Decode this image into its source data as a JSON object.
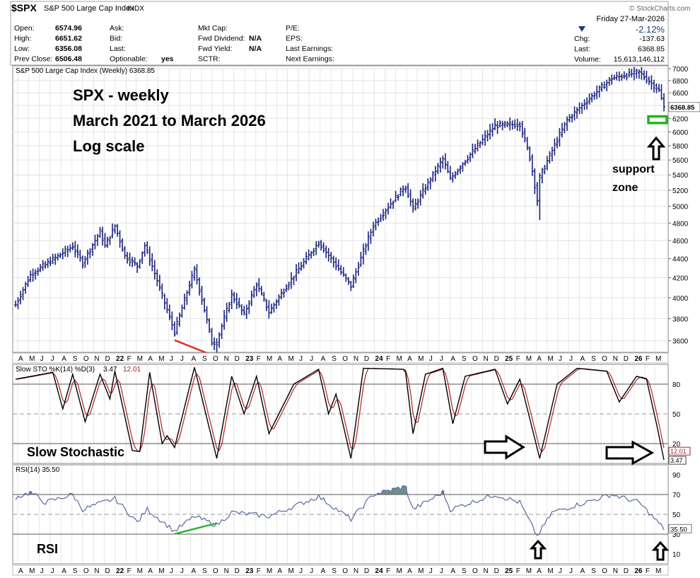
{
  "header": {
    "symbol": "$SPX",
    "name": "S&P 500 Large Cap Index",
    "exchange": "INDX",
    "brand": "© StockCharts.com",
    "date": "Friday  27-Mar-2026",
    "quote_col1": [
      {
        "label": "Open:",
        "value": "6574.96"
      },
      {
        "label": "High:",
        "value": "6651.62"
      },
      {
        "label": "Low:",
        "value": "6356.08"
      },
      {
        "label": "Prev Close:",
        "value": "6506.48"
      }
    ],
    "quote_col2": [
      {
        "label": "Ask:",
        "value": ""
      },
      {
        "label": "Bid:",
        "value": ""
      },
      {
        "label": "Last:",
        "value": ""
      },
      {
        "label": "Optionable:",
        "value": "yes"
      }
    ],
    "quote_col3": [
      {
        "label": "Mkt Cap:",
        "value": ""
      },
      {
        "label": "Fwd Dividend:",
        "value": "N/A"
      },
      {
        "label": "Fwd Yield:",
        "value": "N/A"
      },
      {
        "label": "SCTR:",
        "value": ""
      }
    ],
    "quote_col4": [
      {
        "label": "P/E:",
        "value": ""
      },
      {
        "label": "EPS:",
        "value": ""
      },
      {
        "label": "Last Earnings:",
        "value": ""
      },
      {
        "label": "Next Earnings:",
        "value": ""
      }
    ],
    "change_pct": "-2.12%",
    "quote_col5": [
      {
        "label": "Chg:",
        "value": "-137.63"
      },
      {
        "label": "Last:",
        "value": "6368.85"
      },
      {
        "label": "Volume:",
        "value": "15,613,146,112"
      }
    ],
    "down_color": "#1f3d7a"
  },
  "annotations": {
    "title_lines": [
      "SPX - weekly",
      "March 2021 to March 2026",
      "Log scale"
    ],
    "support_label_lines": [
      "support",
      "zone"
    ],
    "stoch_label": "Slow Stochastic",
    "rsi_label": "RSI",
    "red_line_color": "#e03030",
    "green_line_color": "#2fb52f",
    "support_box_color": "#22b322"
  },
  "chart_data": [
    {
      "type": "ohlc",
      "panel": "price",
      "legend": "S&P 500 Large Cap Index (Weekly) 6368.85",
      "scale": "log",
      "ylim": [
        3500,
        7050
      ],
      "y_ticks": [
        3600,
        3800,
        4000,
        4200,
        4400,
        4600,
        4800,
        5000,
        5200,
        5400,
        5600,
        5800,
        6000,
        6200,
        6400,
        6600,
        6800,
        7000
      ],
      "last_value_label": "6368.85",
      "x_labels": [
        "A",
        "M",
        "J",
        "J",
        "A",
        "S",
        "O",
        "N",
        "D",
        "22",
        "F",
        "M",
        "A",
        "M",
        "J",
        "J",
        "A",
        "S",
        "O",
        "N",
        "D",
        "23",
        "F",
        "M",
        "A",
        "M",
        "J",
        "J",
        "A",
        "S",
        "O",
        "N",
        "D",
        "24",
        "F",
        "M",
        "A",
        "M",
        "J",
        "J",
        "A",
        "S",
        "O",
        "N",
        "D",
        "25",
        "F",
        "M",
        "A",
        "M",
        "J",
        "J",
        "A",
        "S",
        "O",
        "N",
        "D",
        "26",
        "F",
        "M"
      ],
      "x_label_bold": [
        "22",
        "23",
        "24",
        "25",
        "26"
      ],
      "anchors": [
        {
          "date": "2021-03-26",
          "close": 3930
        },
        {
          "date": "2021-05-07",
          "close": 4230
        },
        {
          "date": "2021-09-03",
          "close": 4535
        },
        {
          "date": "2021-10-01",
          "close": 4355
        },
        {
          "date": "2021-11-19",
          "close": 4700
        },
        {
          "date": "2021-12-03",
          "close": 4540
        },
        {
          "date": "2021-12-31",
          "close": 4766
        },
        {
          "date": "2022-01-28",
          "close": 4430
        },
        {
          "date": "2022-03-04",
          "close": 4320
        },
        {
          "date": "2022-03-25",
          "close": 4545
        },
        {
          "date": "2022-05-13",
          "close": 4020
        },
        {
          "date": "2022-06-17",
          "close": 3675
        },
        {
          "date": "2022-08-12",
          "close": 4280
        },
        {
          "date": "2022-09-30",
          "close": 3585
        },
        {
          "date": "2022-10-14",
          "close": 3585
        },
        {
          "date": "2022-11-25",
          "close": 4025
        },
        {
          "date": "2022-12-30",
          "close": 3840
        },
        {
          "date": "2023-02-03",
          "close": 4135
        },
        {
          "date": "2023-03-10",
          "close": 3860
        },
        {
          "date": "2023-07-28",
          "close": 4580
        },
        {
          "date": "2023-10-27",
          "close": 4115
        },
        {
          "date": "2023-12-29",
          "close": 4770
        },
        {
          "date": "2024-03-28",
          "close": 5255
        },
        {
          "date": "2024-04-19",
          "close": 4970
        },
        {
          "date": "2024-07-12",
          "close": 5615
        },
        {
          "date": "2024-08-02",
          "close": 5345
        },
        {
          "date": "2024-12-06",
          "close": 6090
        },
        {
          "date": "2025-02-14",
          "close": 6115
        },
        {
          "date": "2025-03-14",
          "close": 5640
        },
        {
          "date": "2025-04-04",
          "close": 5075
        },
        {
          "date": "2025-04-11",
          "close": 5365
        },
        {
          "date": "2025-06-27",
          "close": 6175
        },
        {
          "date": "2025-10-31",
          "close": 6840
        },
        {
          "date": "2026-01-16",
          "close": 6940
        },
        {
          "date": "2026-03-13",
          "close": 6640
        },
        {
          "date": "2026-03-27",
          "close": 6368.85
        }
      ],
      "low_marks": [
        {
          "date": "2022-06-17",
          "low": 3637
        },
        {
          "date": "2022-10-14",
          "low": 3491
        },
        {
          "date": "2025-04-11",
          "low": 4835
        }
      ],
      "support_zone": [
        6130,
        6230
      ],
      "divergence_line": {
        "from": {
          "date": "2022-06-17",
          "value": 3637
        },
        "to": {
          "date": "2022-10-14",
          "value": 3491
        }
      }
    },
    {
      "type": "line",
      "panel": "stochastic",
      "legend_prefix": "Slow STO %K(14) %D(3)",
      "series": [
        {
          "name": "%K",
          "value": "3.47",
          "color": "#000000"
        },
        {
          "name": "%D",
          "value": "12.01",
          "color": "#b22222"
        }
      ],
      "ylim": [
        0,
        100
      ],
      "y_ticks": [
        20,
        50,
        80
      ],
      "reference_lines": [
        20,
        50,
        80
      ],
      "anchors": [
        {
          "date": "2021-03-26",
          "k": 85
        },
        {
          "date": "2021-07-09",
          "k": 92
        },
        {
          "date": "2021-08-06",
          "k": 55
        },
        {
          "date": "2021-09-03",
          "k": 90
        },
        {
          "date": "2021-10-08",
          "k": 42
        },
        {
          "date": "2021-11-19",
          "k": 90
        },
        {
          "date": "2021-12-17",
          "k": 65
        },
        {
          "date": "2021-12-31",
          "k": 93
        },
        {
          "date": "2022-02-18",
          "k": 13
        },
        {
          "date": "2022-03-11",
          "k": 12
        },
        {
          "date": "2022-04-08",
          "k": 92
        },
        {
          "date": "2022-05-13",
          "k": 20
        },
        {
          "date": "2022-05-27",
          "k": 28
        },
        {
          "date": "2022-06-17",
          "k": 16
        },
        {
          "date": "2022-08-12",
          "k": 97
        },
        {
          "date": "2022-10-14",
          "k": 5
        },
        {
          "date": "2022-11-25",
          "k": 88
        },
        {
          "date": "2022-12-30",
          "k": 50
        },
        {
          "date": "2023-02-03",
          "k": 88
        },
        {
          "date": "2023-03-10",
          "k": 30
        },
        {
          "date": "2023-05-19",
          "k": 80
        },
        {
          "date": "2023-07-28",
          "k": 95
        },
        {
          "date": "2023-08-25",
          "k": 50
        },
        {
          "date": "2023-09-15",
          "k": 70
        },
        {
          "date": "2023-10-27",
          "k": 5
        },
        {
          "date": "2023-12-01",
          "k": 96
        },
        {
          "date": "2024-03-28",
          "k": 95
        },
        {
          "date": "2024-04-19",
          "k": 30
        },
        {
          "date": "2024-05-24",
          "k": 90
        },
        {
          "date": "2024-07-12",
          "k": 96
        },
        {
          "date": "2024-08-09",
          "k": 40
        },
        {
          "date": "2024-09-13",
          "k": 88
        },
        {
          "date": "2024-12-06",
          "k": 95
        },
        {
          "date": "2025-01-10",
          "k": 60
        },
        {
          "date": "2025-02-14",
          "k": 85
        },
        {
          "date": "2025-04-11",
          "k": 5
        },
        {
          "date": "2025-05-30",
          "k": 80
        },
        {
          "date": "2025-07-25",
          "k": 96
        },
        {
          "date": "2025-10-17",
          "k": 93
        },
        {
          "date": "2025-11-21",
          "k": 62
        },
        {
          "date": "2026-01-09",
          "k": 88
        },
        {
          "date": "2026-02-06",
          "k": 85
        },
        {
          "date": "2026-03-06",
          "k": 40
        },
        {
          "date": "2026-03-27",
          "k": 3.47
        }
      ]
    },
    {
      "type": "line",
      "panel": "rsi",
      "legend": "RSI(14) 35.50",
      "value": "35.50",
      "ylim": [
        0,
        100
      ],
      "y_ticks": [
        10,
        30,
        50,
        70,
        90
      ],
      "reference_lines": [
        30,
        50,
        70
      ],
      "line_color": "#5a6aa0",
      "overbought_fill": "#6f8f8f",
      "anchors": [
        {
          "date": "2021-03-26",
          "v": 67
        },
        {
          "date": "2021-05-07",
          "v": 72
        },
        {
          "date": "2021-06-18",
          "v": 62
        },
        {
          "date": "2021-09-03",
          "v": 70
        },
        {
          "date": "2021-10-01",
          "v": 55
        },
        {
          "date": "2021-12-31",
          "v": 66
        },
        {
          "date": "2022-03-04",
          "v": 42
        },
        {
          "date": "2022-04-01",
          "v": 55
        },
        {
          "date": "2022-06-17",
          "v": 33
        },
        {
          "date": "2022-08-12",
          "v": 48
        },
        {
          "date": "2022-10-14",
          "v": 39
        },
        {
          "date": "2022-11-25",
          "v": 52
        },
        {
          "date": "2023-03-10",
          "v": 48
        },
        {
          "date": "2023-07-28",
          "v": 68
        },
        {
          "date": "2023-10-27",
          "v": 45
        },
        {
          "date": "2023-12-29",
          "v": 70
        },
        {
          "date": "2024-03-28",
          "v": 78
        },
        {
          "date": "2024-04-19",
          "v": 55
        },
        {
          "date": "2024-07-12",
          "v": 72
        },
        {
          "date": "2024-08-02",
          "v": 55
        },
        {
          "date": "2024-12-06",
          "v": 70
        },
        {
          "date": "2025-02-14",
          "v": 62
        },
        {
          "date": "2025-04-04",
          "v": 28
        },
        {
          "date": "2025-05-16",
          "v": 52
        },
        {
          "date": "2025-10-31",
          "v": 70
        },
        {
          "date": "2026-01-16",
          "v": 62
        },
        {
          "date": "2026-03-27",
          "v": 35.5
        }
      ],
      "divergence_line": {
        "from": {
          "date": "2022-06-17",
          "value": 33
        },
        "to": {
          "date": "2022-10-14",
          "value": 39
        }
      }
    }
  ]
}
